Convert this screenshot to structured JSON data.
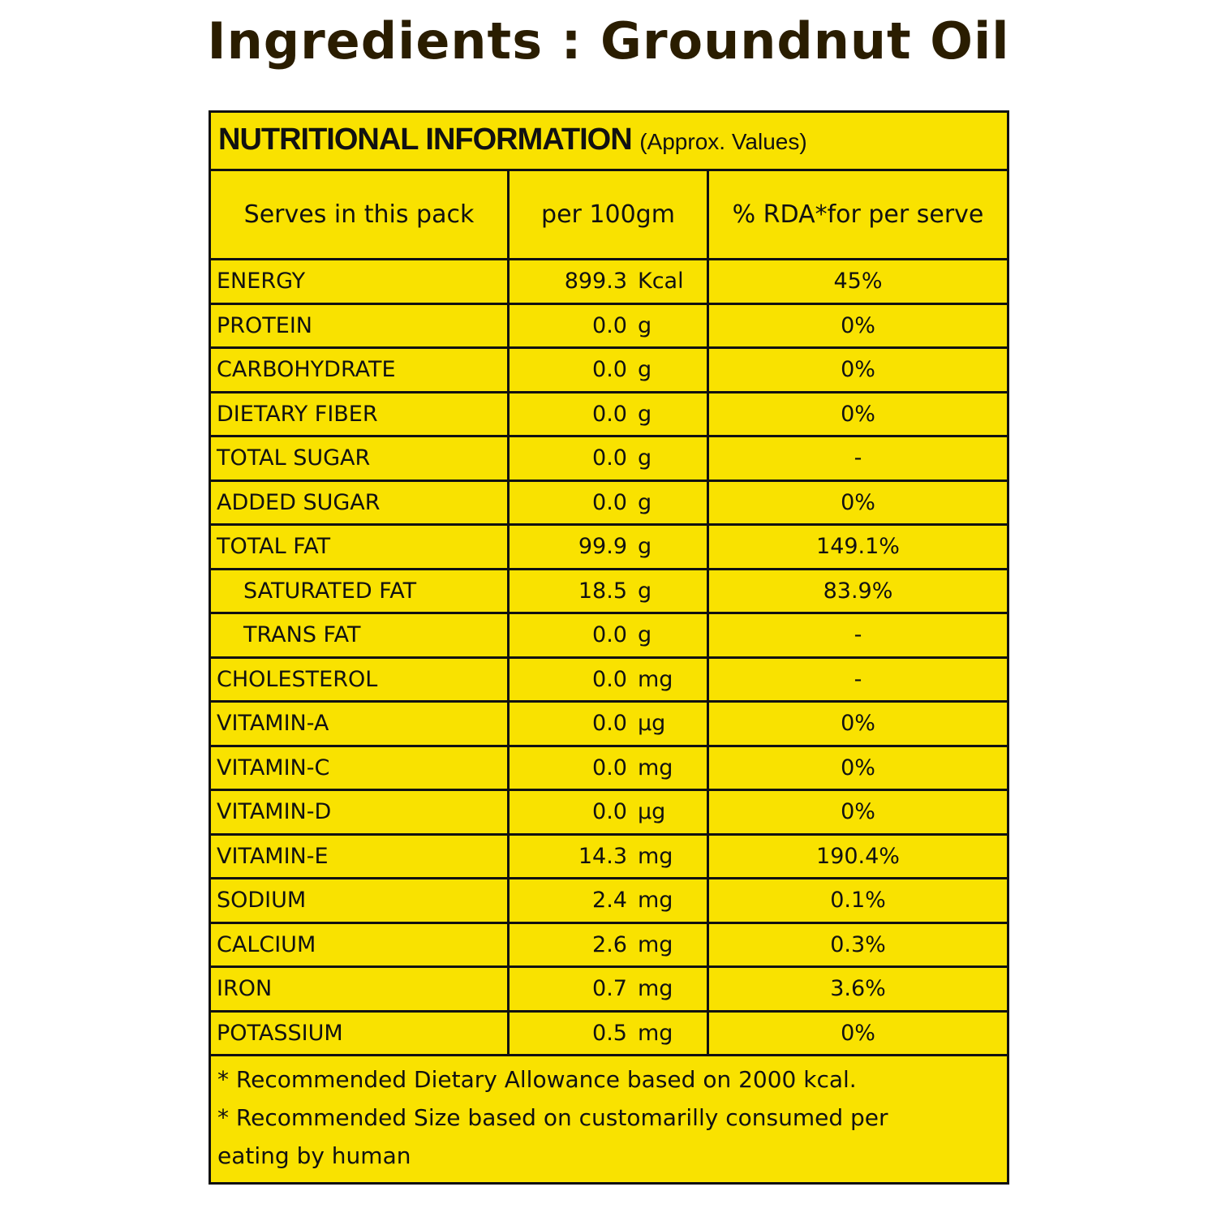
{
  "title": "Ingredients : Groundnut Oil",
  "table": {
    "heading": "NUTRITIONAL INFORMATION",
    "heading_note": "(Approx. Values)",
    "columns": [
      "Serves in this pack",
      "per 100gm",
      "% RDA*for per serve"
    ],
    "rows": [
      {
        "name": "ENERGY",
        "value": "899.3",
        "unit": "Kcal",
        "rda": "45%"
      },
      {
        "name": "PROTEIN",
        "value": "0.0",
        "unit": "g",
        "rda": "0%"
      },
      {
        "name": "CARBOHYDRATE",
        "value": "0.0",
        "unit": "g",
        "rda": "0%"
      },
      {
        "name": "DIETARY FIBER",
        "value": "0.0",
        "unit": "g",
        "rda": "0%"
      },
      {
        "name": "TOTAL SUGAR",
        "value": "0.0",
        "unit": "g",
        "rda": "-"
      },
      {
        "name": "ADDED SUGAR",
        "value": "0.0",
        "unit": "g",
        "rda": "0%"
      },
      {
        "name": "TOTAL FAT",
        "value": "99.9",
        "unit": "g",
        "rda": "149.1%"
      },
      {
        "name": "SATURATED FAT",
        "value": "18.5",
        "unit": "g",
        "rda": "83.9%",
        "indent": true
      },
      {
        "name": "TRANS FAT",
        "value": "0.0",
        "unit": "g",
        "rda": "-",
        "indent": true
      },
      {
        "name": "CHOLESTEROL",
        "value": "0.0",
        "unit": "mg",
        "rda": "-"
      },
      {
        "name": "VITAMIN-A",
        "value": "0.0",
        "unit": "µg",
        "rda": "0%"
      },
      {
        "name": "VITAMIN-C",
        "value": "0.0",
        "unit": "mg",
        "rda": "0%"
      },
      {
        "name": "VITAMIN-D",
        "value": "0.0",
        "unit": "µg",
        "rda": "0%"
      },
      {
        "name": "VITAMIN-E",
        "value": "14.3",
        "unit": "mg",
        "rda": "190.4%"
      },
      {
        "name": "SODIUM",
        "value": "2.4",
        "unit": "mg",
        "rda": "0.1%"
      },
      {
        "name": "CALCIUM",
        "value": "2.6",
        "unit": "mg",
        "rda": "0.3%"
      },
      {
        "name": "IRON",
        "value": "0.7",
        "unit": "mg",
        "rda": "3.6%"
      },
      {
        "name": "POTASSIUM",
        "value": "0.5",
        "unit": "mg",
        "rda": "0%"
      }
    ],
    "footnotes": [
      "* Recommended  Dietary Allowance based on 2000 kcal.",
      "* Recommended Size based on customarilly consumed per",
      "eating by human"
    ]
  },
  "colors": {
    "background": "#f9e200",
    "border": "#111111",
    "title": "#2a1d00"
  }
}
